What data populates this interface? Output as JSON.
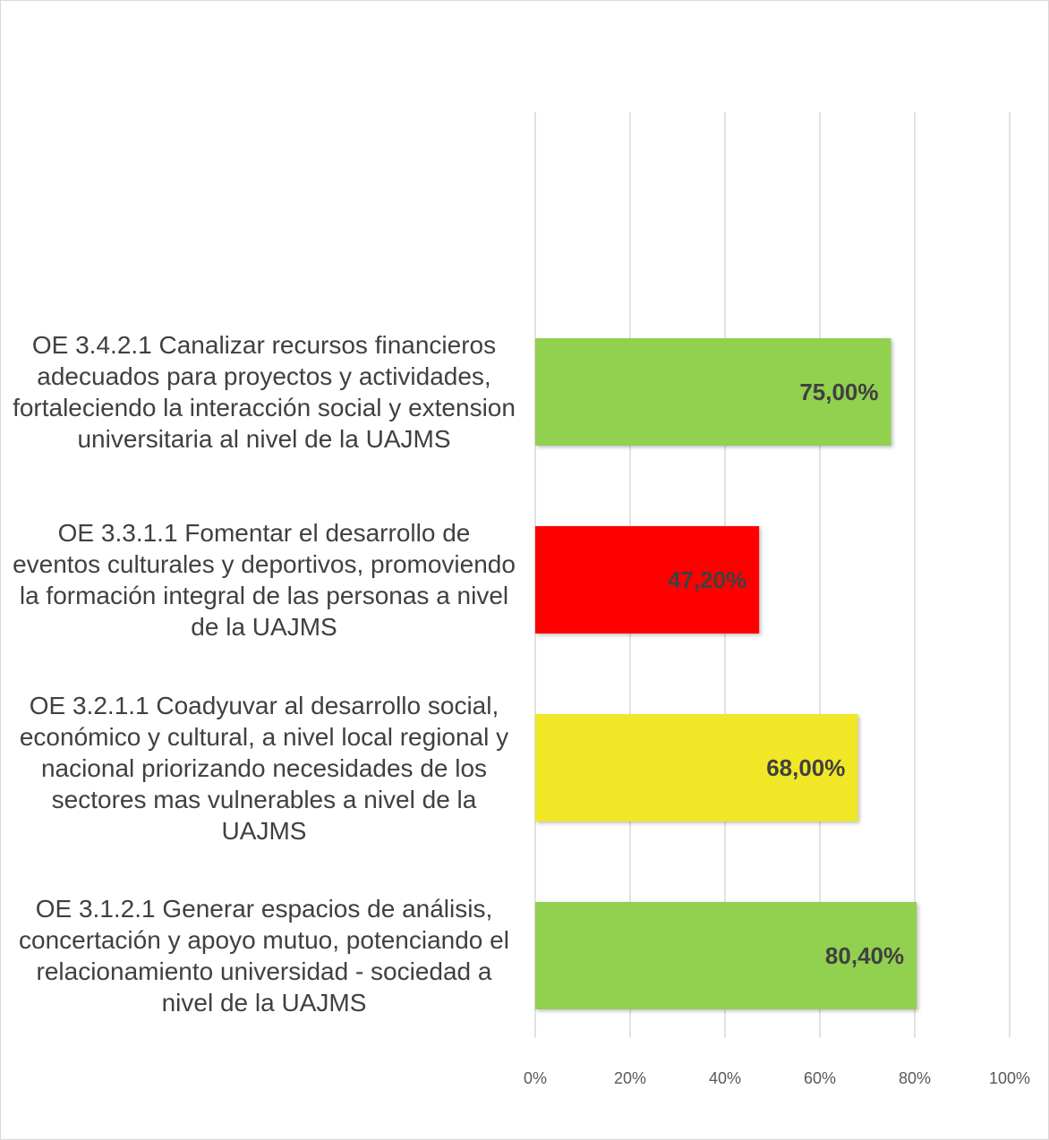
{
  "chart_data": {
    "type": "barh",
    "categories": [
      "OE 3.4.2.1 Canalizar recursos financieros adecuados para proyectos y actividades, fortaleciendo la interacción social y extension universitaria al nivel de la UAJMS",
      "OE 3.3.1.1 Fomentar el desarrollo de eventos culturales y deportivos, promoviendo la formación integral de las personas a nivel de la UAJMS",
      "OE 3.2.1.1 Coadyuvar al desarrollo social, económico y cultural, a nivel local regional y nacional priorizando necesidades de los sectores mas vulnerables a nivel de la UAJMS",
      "OE 3.1.2.1 Generar espacios de análisis, concertación y apoyo mutuo, potenciando el relacionamiento universidad - sociedad a nivel de la UAJMS"
    ],
    "values": [
      75,
      47.2,
      68,
      80.4
    ],
    "value_labels": [
      "75,00%",
      "47,20%",
      "68,00%",
      "80,40%"
    ],
    "colors": [
      "#92d050",
      "#ff0000",
      "#f0e826",
      "#92d050"
    ],
    "xlim": [
      0,
      100
    ],
    "xticks": [
      {
        "value": 0,
        "label": "0%"
      },
      {
        "value": 20,
        "label": "20%"
      },
      {
        "value": 40,
        "label": "40%"
      },
      {
        "value": 60,
        "label": "60%"
      },
      {
        "value": 80,
        "label": "80%"
      },
      {
        "value": 100,
        "label": "100%"
      }
    ],
    "grid": true
  }
}
